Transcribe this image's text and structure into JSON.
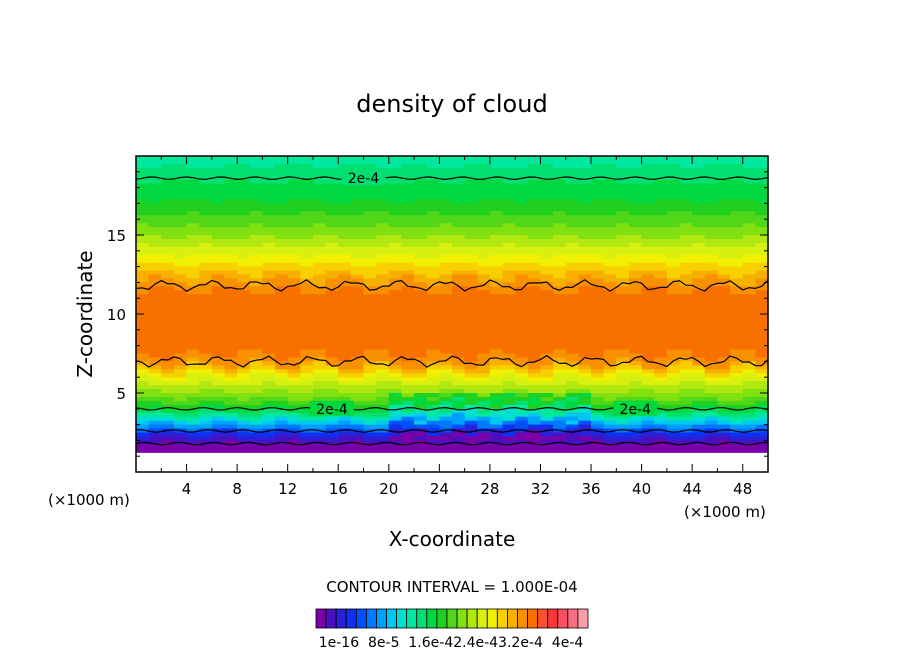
{
  "chart_data": {
    "type": "heatmap",
    "title": "density of cloud",
    "xlabel": "X-coordinate",
    "ylabel": "Z-coordinate",
    "x_unit": "(×1000 m)",
    "x_unit_left": "(×1000 m)",
    "xlim": [
      0,
      50
    ],
    "ylim": [
      0,
      20
    ],
    "x_ticks": [
      4,
      8,
      12,
      16,
      20,
      24,
      28,
      32,
      36,
      40,
      44,
      48
    ],
    "y_ticks": [
      5,
      10,
      15
    ],
    "contour_interval_label": "CONTOUR INTERVAL = 1.000E-04",
    "contour_labels": [
      "2e-4",
      "2e-4",
      "2e-4"
    ],
    "colorbar_labels": [
      "1e-16",
      "8e-5",
      "1.6e-4",
      "2.4e-4",
      "3.2e-4",
      "4e-4"
    ],
    "colorbar_label_text": "1e-16  8e-5  1.6e-42.4e-43.2e-4  4e-4",
    "colorbar_colors": [
      "#7a00a8",
      "#4a10c0",
      "#2a20d8",
      "#1030f0",
      "#0050ff",
      "#0078ff",
      "#00a0ff",
      "#00c8f0",
      "#00e0d0",
      "#00e8a0",
      "#00e070",
      "#00d840",
      "#20d020",
      "#50d818",
      "#80e010",
      "#b0e810",
      "#d8f010",
      "#f0f000",
      "#f8d000",
      "#f8b000",
      "#f89000",
      "#f87000",
      "#f85030",
      "#f83838",
      "#f85060",
      "#f87080",
      "#f8a0a8"
    ],
    "z_profile": [
      {
        "z": 1.2,
        "v": 0.0
      },
      {
        "z": 1.8,
        "v": 0.02
      },
      {
        "z": 2.3,
        "v": 0.08
      },
      {
        "z": 2.8,
        "v": 0.2
      },
      {
        "z": 3.3,
        "v": 0.3
      },
      {
        "z": 3.8,
        "v": 0.4
      },
      {
        "z": 4.3,
        "v": 0.48
      },
      {
        "z": 5.0,
        "v": 0.55
      },
      {
        "z": 5.8,
        "v": 0.62
      },
      {
        "z": 6.5,
        "v": 0.7
      },
      {
        "z": 7.0,
        "v": 0.78
      },
      {
        "z": 8.0,
        "v": 0.8
      },
      {
        "z": 10.0,
        "v": 0.82
      },
      {
        "z": 11.3,
        "v": 0.8
      },
      {
        "z": 12.0,
        "v": 0.76
      },
      {
        "z": 12.8,
        "v": 0.7
      },
      {
        "z": 13.5,
        "v": 0.65
      },
      {
        "z": 14.5,
        "v": 0.58
      },
      {
        "z": 15.5,
        "v": 0.52
      },
      {
        "z": 16.5,
        "v": 0.47
      },
      {
        "z": 17.5,
        "v": 0.43
      },
      {
        "z": 18.5,
        "v": 0.4
      },
      {
        "z": 19.5,
        "v": 0.36
      },
      {
        "z": 20.0,
        "v": 0.34
      }
    ],
    "contour_levels_z": [
      1.8,
      2.6,
      4.0,
      7.0,
      11.8,
      18.6
    ],
    "bottom_fill_top_z": 1.2
  }
}
